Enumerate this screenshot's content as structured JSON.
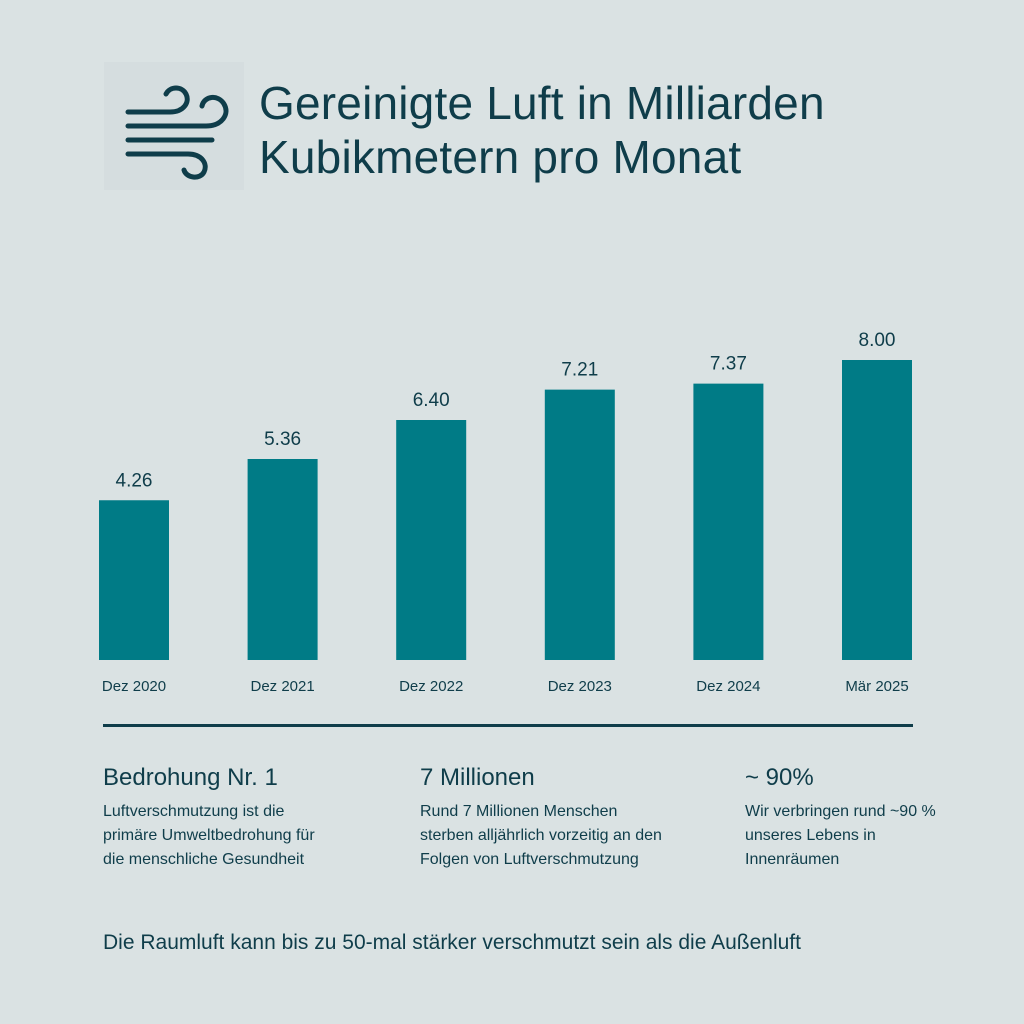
{
  "colors": {
    "background": "#dae2e3",
    "text": "#0f3d4a",
    "bar": "#007b86"
  },
  "header": {
    "icon": "wind-icon",
    "title_line1": "Gereinigte Luft in Milliarden",
    "title_line2": "Kubikmetern pro Monat"
  },
  "chart_data": {
    "type": "bar",
    "title": "Gereinigte Luft in Milliarden Kubikmetern pro Monat",
    "categories": [
      "Dez 2020",
      "Dez 2021",
      "Dez 2022",
      "Dez 2023",
      "Dez 2024",
      "Mär 2025"
    ],
    "values": [
      4.26,
      5.36,
      6.4,
      7.21,
      7.37,
      8.0
    ],
    "value_labels": [
      "4.26",
      "5.36",
      "6.40",
      "7.21",
      "7.37",
      "8.00"
    ],
    "ylim": [
      0,
      8.5
    ],
    "grid": false,
    "legend": "none"
  },
  "facts": [
    {
      "heading": "Bedrohung Nr. 1",
      "text": [
        "Luftverschmutzung ist die",
        "primäre Umweltbedrohung für",
        "die menschliche Gesundheit"
      ]
    },
    {
      "heading": "7 Millionen",
      "text": [
        "Rund 7 Millionen Menschen",
        "sterben alljährlich vorzeitig an den",
        "Folgen von Luftverschmutzung"
      ]
    },
    {
      "heading": "~ 90%",
      "text": [
        "Wir verbringen rund ~90 %",
        "unseres Lebens in",
        "Innenräumen"
      ]
    }
  ],
  "footer": {
    "text": "Die Raumluft kann bis zu 50-mal stärker verschmutzt sein als die Außenluft"
  }
}
